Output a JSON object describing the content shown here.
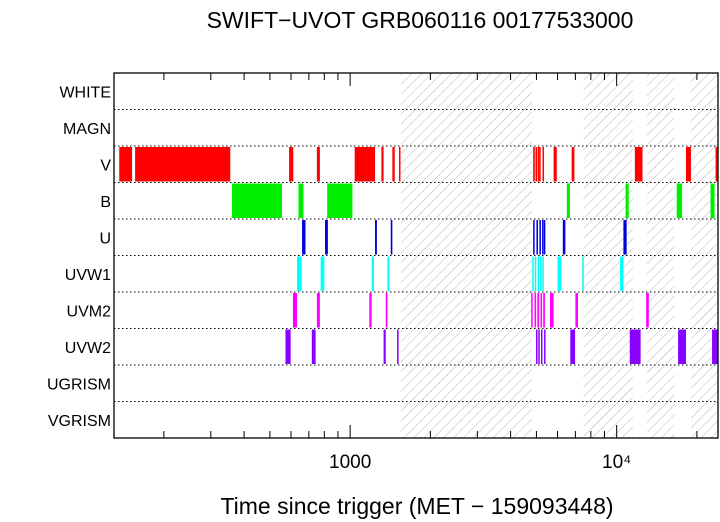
{
  "chart_data": {
    "type": "timeline",
    "title": "SWIFT−UVOT GRB060116 00177533000",
    "xlabel": "Time since trigger (MET − 159093448)",
    "x_scale": "log",
    "xlim": [
      130,
      24000
    ],
    "x_ticks": [
      {
        "value": 1000,
        "label": "1000"
      },
      {
        "value": 10000,
        "label": "10⁴"
      }
    ],
    "rows": [
      "WHITE",
      "MAGN",
      "V",
      "B",
      "U",
      "UVW1",
      "UVM2",
      "UVW2",
      "UGRISM",
      "VGRISM"
    ],
    "hatched_intervals": [
      [
        1550,
        4800
      ],
      [
        7500,
        11500
      ],
      [
        13000,
        16500
      ],
      [
        19000,
        24000
      ]
    ],
    "series": [
      {
        "name": "V",
        "color": "#ff0000",
        "segments": [
          [
            136,
            152
          ],
          [
            156,
            355
          ],
          [
            590,
            612
          ],
          [
            750,
            770
          ],
          [
            1040,
            1240
          ],
          [
            1310,
            1335
          ],
          [
            1440,
            1470
          ],
          [
            1525,
            1545
          ],
          [
            4860,
            4930
          ],
          [
            4960,
            5010
          ],
          [
            5050,
            5100
          ],
          [
            5120,
            5180
          ],
          [
            5270,
            5320
          ],
          [
            5800,
            5960
          ],
          [
            6780,
            6940
          ],
          [
            11700,
            12500
          ],
          [
            18200,
            19000
          ],
          [
            23500,
            24000
          ]
        ]
      },
      {
        "name": "B",
        "color": "#00ee00",
        "segments": [
          [
            360,
            555
          ],
          [
            640,
            668
          ],
          [
            820,
            1020
          ],
          [
            6500,
            6680
          ],
          [
            10800,
            11100
          ],
          [
            16800,
            17600
          ],
          [
            22500,
            23300
          ]
        ]
      },
      {
        "name": "U",
        "color": "#0000dd",
        "segments": [
          [
            660,
            680
          ],
          [
            805,
            825
          ],
          [
            1240,
            1260
          ],
          [
            1420,
            1440
          ],
          [
            4860,
            4900
          ],
          [
            5000,
            5060
          ],
          [
            5130,
            5180
          ],
          [
            5250,
            5290
          ],
          [
            5330,
            5370
          ],
          [
            6280,
            6420
          ],
          [
            10600,
            10900
          ]
        ]
      },
      {
        "name": "UVW1",
        "color": "#00ffff",
        "segments": [
          [
            632,
            658
          ],
          [
            775,
            800
          ],
          [
            1205,
            1228
          ],
          [
            1380,
            1405
          ],
          [
            4820,
            4880
          ],
          [
            4930,
            4980
          ],
          [
            5050,
            5090
          ],
          [
            5160,
            5210
          ],
          [
            5260,
            5320
          ],
          [
            6000,
            6200
          ],
          [
            7430,
            7520
          ],
          [
            10300,
            10600
          ]
        ]
      },
      {
        "name": "UVM2",
        "color": "#ff00ff",
        "segments": [
          [
            610,
            632
          ],
          [
            750,
            770
          ],
          [
            1180,
            1204
          ],
          [
            1360,
            1380
          ],
          [
            4780,
            4840
          ],
          [
            4920,
            4980
          ],
          [
            5040,
            5120
          ],
          [
            5180,
            5250
          ],
          [
            5300,
            5380
          ],
          [
            5620,
            5800
          ],
          [
            7000,
            7160
          ],
          [
            12900,
            13200
          ]
        ]
      },
      {
        "name": "UVW2",
        "color": "#8800ff",
        "segments": [
          [
            572,
            598
          ],
          [
            718,
            742
          ],
          [
            1335,
            1360
          ],
          [
            1500,
            1520
          ],
          [
            4980,
            5030
          ],
          [
            5080,
            5140
          ],
          [
            5200,
            5260
          ],
          [
            5340,
            5400
          ],
          [
            6700,
            6980
          ],
          [
            11200,
            12300
          ],
          [
            17000,
            18200
          ],
          [
            22800,
            24000
          ]
        ]
      }
    ]
  }
}
